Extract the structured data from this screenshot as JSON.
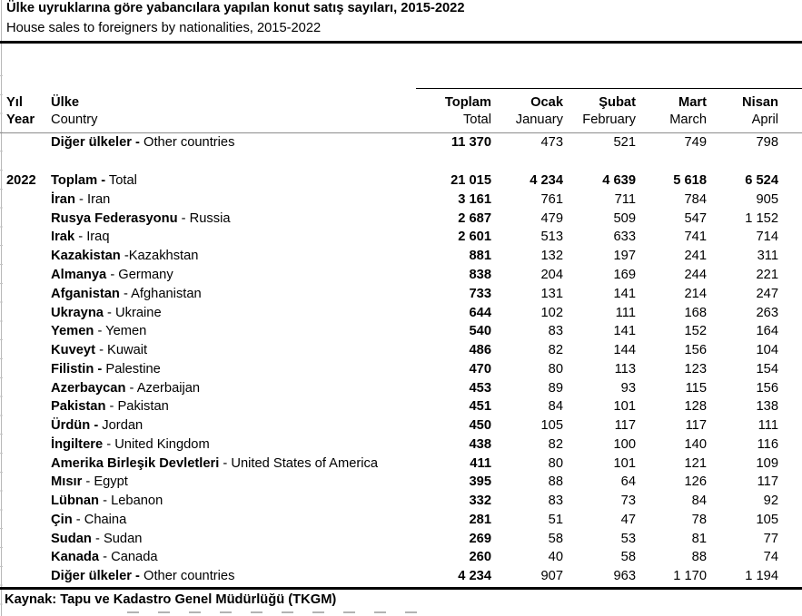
{
  "title_tr": "Ülke uyruklarına göre yabancılara yapılan konut satış sayıları, 2015-2022",
  "title_en": "House sales to foreigners by nationalities, 2015-2022",
  "header": {
    "year_tr": "Yıl",
    "year_en": "Year",
    "country_tr": "Ülke",
    "country_en": "Country",
    "cols": [
      {
        "tr": "Toplam",
        "en": "Total"
      },
      {
        "tr": "Ocak",
        "en": "January"
      },
      {
        "tr": "Şubat",
        "en": "February"
      },
      {
        "tr": "Mart",
        "en": "March"
      },
      {
        "tr": "Nisan",
        "en": "April"
      }
    ]
  },
  "table": {
    "rows": [
      {
        "year": "",
        "tr": "Diğer ülkeler -",
        "en": " Other countries",
        "values": [
          "11 370",
          "473",
          "521",
          "749",
          "798"
        ],
        "bold_months": false,
        "gap_after": true
      },
      {
        "year": "2022",
        "tr": "Toplam -",
        "en": " Total",
        "values": [
          "21 015",
          "4 234",
          "4 639",
          "5 618",
          "6 524"
        ],
        "bold_months": true,
        "gap_after": false
      },
      {
        "year": "",
        "tr": "İran",
        "en": " - Iran",
        "values": [
          "3 161",
          "761",
          "711",
          "784",
          "905"
        ],
        "bold_months": false,
        "gap_after": false
      },
      {
        "year": "",
        "tr": "Rusya Federasyonu",
        "en": " - Russia",
        "values": [
          "2 687",
          "479",
          "509",
          "547",
          "1 152"
        ],
        "bold_months": false,
        "gap_after": false
      },
      {
        "year": "",
        "tr": "Irak",
        "en": " - Iraq",
        "values": [
          "2 601",
          "513",
          "633",
          "741",
          "714"
        ],
        "bold_months": false,
        "gap_after": false
      },
      {
        "year": "",
        "tr": "Kazakistan",
        "en": " -Kazakhstan",
        "values": [
          "881",
          "132",
          "197",
          "241",
          "311"
        ],
        "bold_months": false,
        "gap_after": false
      },
      {
        "year": "",
        "tr": "Almanya",
        "en": " - Germany",
        "values": [
          "838",
          "204",
          "169",
          "244",
          "221"
        ],
        "bold_months": false,
        "gap_after": false
      },
      {
        "year": "",
        "tr": "Afganistan",
        "en": " - Afghanistan",
        "values": [
          "733",
          "131",
          "141",
          "214",
          "247"
        ],
        "bold_months": false,
        "gap_after": false
      },
      {
        "year": "",
        "tr": "Ukrayna",
        "en": " - Ukraine",
        "values": [
          "644",
          "102",
          "111",
          "168",
          "263"
        ],
        "bold_months": false,
        "gap_after": false
      },
      {
        "year": "",
        "tr": "Yemen",
        "en": " - Yemen",
        "values": [
          "540",
          "83",
          "141",
          "152",
          "164"
        ],
        "bold_months": false,
        "gap_after": false
      },
      {
        "year": "",
        "tr": "Kuveyt",
        "en": " - Kuwait",
        "values": [
          "486",
          "82",
          "144",
          "156",
          "104"
        ],
        "bold_months": false,
        "gap_after": false
      },
      {
        "year": "",
        "tr": "Filistin -",
        "en": " Palestine",
        "values": [
          "470",
          "80",
          "113",
          "123",
          "154"
        ],
        "bold_months": false,
        "gap_after": false
      },
      {
        "year": "",
        "tr": "Azerbaycan",
        "en": " - Azerbaijan",
        "values": [
          "453",
          "89",
          "93",
          "115",
          "156"
        ],
        "bold_months": false,
        "gap_after": false
      },
      {
        "year": "",
        "tr": "Pakistan",
        "en": " - Pakistan",
        "values": [
          "451",
          "84",
          "101",
          "128",
          "138"
        ],
        "bold_months": false,
        "gap_after": false
      },
      {
        "year": "",
        "tr": "Ürdün -",
        "en": " Jordan",
        "values": [
          "450",
          "105",
          "117",
          "117",
          "111"
        ],
        "bold_months": false,
        "gap_after": false
      },
      {
        "year": "",
        "tr": "İngiltere",
        "en": " - United Kingdom",
        "values": [
          "438",
          "82",
          "100",
          "140",
          "116"
        ],
        "bold_months": false,
        "gap_after": false
      },
      {
        "year": "",
        "tr": "Amerika Birleşik Devletleri",
        "en": " - United States of America",
        "values": [
          "411",
          "80",
          "101",
          "121",
          "109"
        ],
        "bold_months": false,
        "gap_after": false
      },
      {
        "year": "",
        "tr": "Mısır",
        "en": " - Egypt",
        "values": [
          "395",
          "88",
          "64",
          "126",
          "117"
        ],
        "bold_months": false,
        "gap_after": false
      },
      {
        "year": "",
        "tr": "Lübnan",
        "en": " - Lebanon",
        "values": [
          "332",
          "83",
          "73",
          "84",
          "92"
        ],
        "bold_months": false,
        "gap_after": false
      },
      {
        "year": "",
        "tr": "Çin",
        "en": " - Chaina",
        "values": [
          "281",
          "51",
          "47",
          "78",
          "105"
        ],
        "bold_months": false,
        "gap_after": false
      },
      {
        "year": "",
        "tr": "Sudan",
        "en": " - Sudan",
        "values": [
          "269",
          "58",
          "53",
          "81",
          "77"
        ],
        "bold_months": false,
        "gap_after": false
      },
      {
        "year": "",
        "tr": "Kanada",
        "en": " - Canada",
        "values": [
          "260",
          "40",
          "58",
          "88",
          "74"
        ],
        "bold_months": false,
        "gap_after": false
      },
      {
        "year": "",
        "tr": "Diğer ülkeler -",
        "en": " Other countries",
        "values": [
          "4 234",
          "907",
          "963",
          "1 170",
          "1 194"
        ],
        "bold_months": false,
        "gap_after": false
      }
    ]
  },
  "source": "Kaynak: Tapu ve Kadastro Genel Müdürlüğü (TKGM)",
  "colors": {
    "text": "#000000",
    "gridline": "#b8b8b8",
    "header_rule_gray": "#8c8c8c"
  }
}
